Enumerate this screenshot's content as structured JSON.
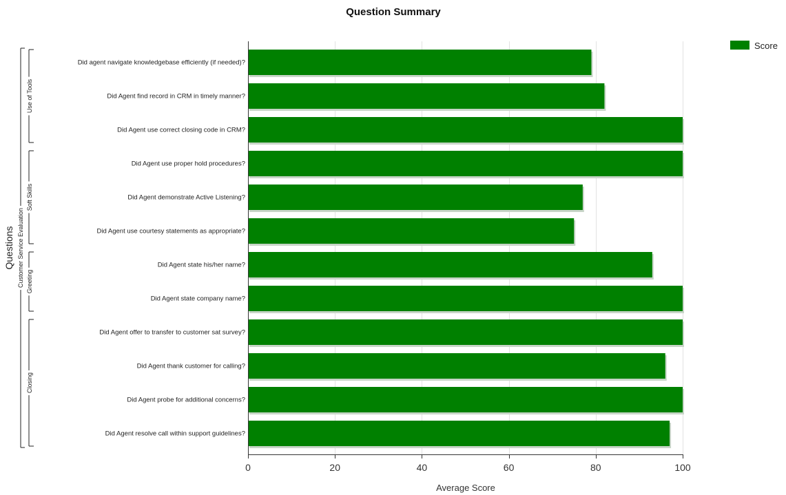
{
  "chart_data": {
    "type": "bar",
    "orientation": "horizontal",
    "title": "Question Summary",
    "xlabel": "Average Score",
    "ylabel": "Questions",
    "xlim": [
      0,
      100
    ],
    "xticks": [
      0,
      20,
      40,
      60,
      80,
      100
    ],
    "grid": true,
    "legend": {
      "position": "top-right",
      "entries": [
        "Score"
      ]
    },
    "series": [
      {
        "name": "Score",
        "color": "#008000",
        "values": [
          79,
          82,
          100,
          100,
          77,
          75,
          93,
          100,
          100,
          96,
          100,
          97
        ]
      }
    ],
    "categories": [
      "Did agent navigate knowledgebase efficiently (if needed)?",
      "Did Agent find record in CRM in timely manner?",
      "Did Agent use correct closing code in CRM?",
      "Did Agent use proper hold procedures?",
      "Did Agent demonstrate Active Listening?",
      "Did Agent use courtesy statements as appropriate?",
      "Did Agent state his/her name?",
      "Did Agent state company name?",
      "Did Agent offer to transfer to customer sat survey?",
      "Did Agent thank customer for calling?",
      "Did Agent probe for additional concerns?",
      "Did Agent resolve call within support guidelines?"
    ],
    "groups": [
      {
        "label": "Customer Service Evaluation",
        "start": 0,
        "end": 11
      },
      {
        "label": "Use of Tools",
        "start": 0,
        "end": 2
      },
      {
        "label": "Soft Skills",
        "start": 3,
        "end": 5
      },
      {
        "label": "Greeting",
        "start": 6,
        "end": 7
      },
      {
        "label": "Closing",
        "start": 8,
        "end": 11
      }
    ]
  }
}
